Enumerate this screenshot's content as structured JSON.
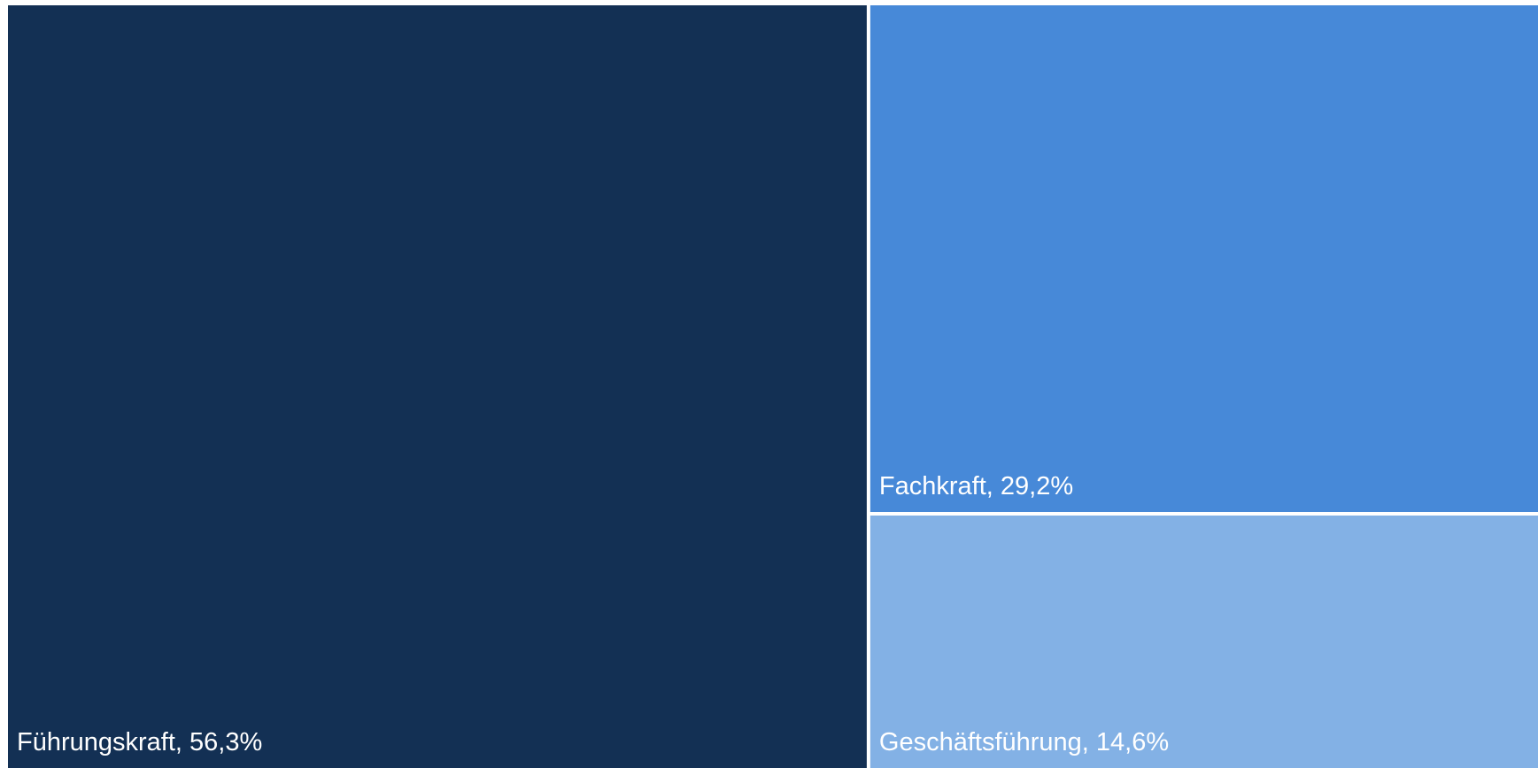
{
  "chart_data": {
    "type": "treemap",
    "values": [
      56.3,
      29.2,
      14.6
    ],
    "value_labels": [
      "Führungskraft, 56,3%",
      "Fachkraft, 29,2%",
      "Geschäftsführung, 14,6%"
    ],
    "colors": [
      "#133054",
      "#4789d8",
      "#83b1e5"
    ]
  }
}
